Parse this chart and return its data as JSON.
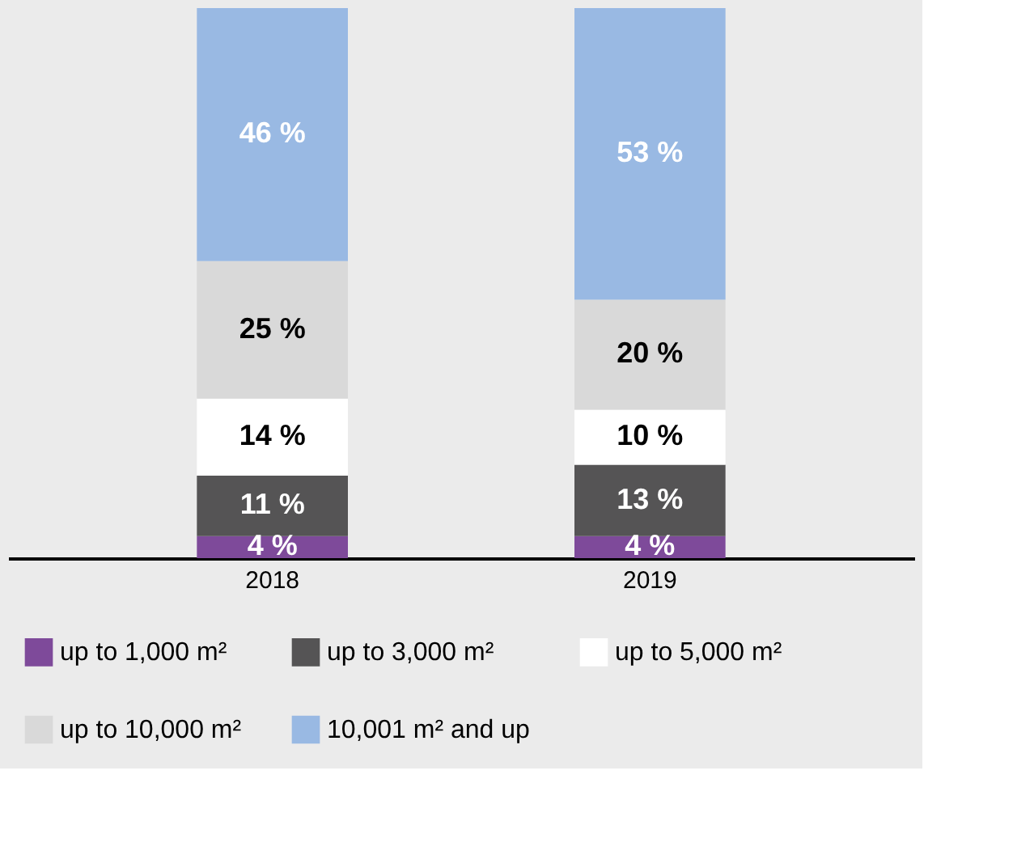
{
  "chart_data": {
    "type": "bar",
    "stacked": true,
    "categories": [
      "2018",
      "2019"
    ],
    "ylim": [
      0,
      100
    ],
    "legend": "bottom",
    "series": [
      {
        "name": "up to 1,000 m²",
        "color": "#7e4a9a",
        "values": [
          4,
          4
        ],
        "value_labels": [
          "4 %",
          "4 %"
        ]
      },
      {
        "name": "up to 3,000 m²",
        "color": "#555455",
        "values": [
          11,
          13
        ],
        "value_labels": [
          "11 %",
          "13 %"
        ]
      },
      {
        "name": "up to 5,000 m²",
        "color": "#ffffff",
        "values": [
          14,
          10
        ],
        "value_labels": [
          "14 %",
          "10 %"
        ]
      },
      {
        "name": "up to 10,000 m²",
        "color": "#d9d9d9",
        "values": [
          25,
          20
        ],
        "value_labels": [
          "25 %",
          "20 %"
        ]
      },
      {
        "name": "10,001 m² and up",
        "color": "#99b9e3",
        "values": [
          46,
          53
        ],
        "value_labels": [
          "46 %",
          "53 %"
        ]
      }
    ]
  }
}
